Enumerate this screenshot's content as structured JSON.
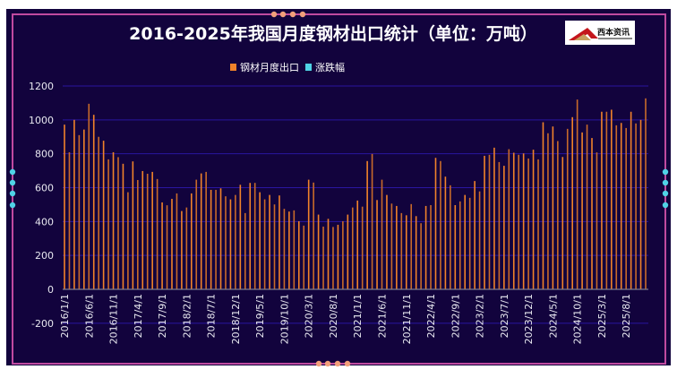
{
  "chart_data": {
    "type": "bar",
    "title": "2016-2025年我国月度钢材出口统计（单位：万吨）",
    "logo_text": "西本资讯",
    "legend": [
      {
        "name": "钢材月度出口",
        "color": "#f0822a"
      },
      {
        "name": "涨跌幅",
        "color": "#4fd3e6"
      }
    ],
    "legend_position": "top-center",
    "xlabel": "",
    "ylabel": "",
    "ylim": [
      -200,
      1200
    ],
    "yticks": [
      -200,
      0,
      200,
      400,
      600,
      800,
      1000,
      1200
    ],
    "grid": true,
    "x_start": "2016/1",
    "x_label_every": 5,
    "xtick_labels": [
      "2016/1/1",
      "2016/6/1",
      "2016/11/1",
      "2017/4/1",
      "2017/9/1",
      "2018/2/1",
      "2018/7/1",
      "2018/12/1",
      "2019/5/1",
      "2019/10/1",
      "2020/3/1",
      "2020/8/1",
      "2021/1/1",
      "2021/6/1",
      "2021/11/1",
      "2022/4/1",
      "2022/9/1",
      "2023/2/1",
      "2023/7/1",
      "2023/12/1",
      "2024/5/1",
      "2024/10/1",
      "2025/3/1",
      "2025/8/1"
    ],
    "series": [
      {
        "name": "钢材月度出口",
        "values": [
          972,
          809,
          1000,
          910,
          943,
          1095,
          1030,
          900,
          877,
          767,
          809,
          780,
          741,
          573,
          755,
          645,
          698,
          682,
          693,
          651,
          513,
          496,
          534,
          566,
          462,
          483,
          566,
          647,
          684,
          693,
          587,
          587,
          596,
          549,
          531,
          557,
          617,
          450,
          628,
          628,
          573,
          531,
          557,
          501,
          554,
          475,
          459,
          466,
          402,
          376,
          647,
          630,
          441,
          370,
          416,
          368,
          381,
          402,
          441,
          483,
          524,
          488,
          757,
          799,
          527,
          647,
          557,
          506,
          492,
          450,
          437,
          503,
          432,
          390,
          492,
          497,
          776,
          757,
          665,
          614,
          497,
          519,
          557,
          540,
          639,
          578,
          788,
          794,
          836,
          751,
          729,
          827,
          806,
          794,
          802,
          772,
          824,
          767,
          986,
          921,
          961,
          875,
          781,
          947,
          1016,
          1120,
          926,
          972,
          893,
          808,
          1048,
          1048,
          1060,
          968,
          982,
          952,
          1048,
          979,
          1000,
          1127
        ]
      },
      {
        "name": "涨跌幅",
        "values": []
      }
    ]
  },
  "colors": {
    "background": "#12033d",
    "frame": "#c04aa0",
    "bar": "#f0822a",
    "grid": "#2a16a0",
    "dots_top": "#f2a07a",
    "dots_side": "#4fd3e6"
  }
}
